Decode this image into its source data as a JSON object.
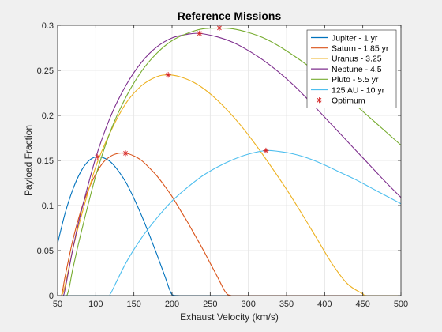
{
  "chart_data": {
    "type": "line",
    "title": "Reference Missions",
    "xlabel": "Exhaust Velocity (km/s)",
    "ylabel": "Payload Fraction",
    "xlim": [
      50,
      500
    ],
    "ylim": [
      0,
      0.3
    ],
    "xticks": [
      "50",
      "100",
      "150",
      "200",
      "250",
      "300",
      "350",
      "400",
      "450",
      "500"
    ],
    "yticks": [
      "0",
      "0.05",
      "0.1",
      "0.15",
      "0.2",
      "0.25",
      "0.3"
    ],
    "grid": true,
    "legend": "top-right",
    "series": [
      {
        "name": "Jupiter - 1 yr",
        "color": "#0072BD",
        "x": [
          50,
          60,
          70,
          80,
          90,
          100,
          110,
          120,
          130,
          140,
          150,
          160,
          170,
          180,
          190,
          200,
          210,
          250,
          300,
          350,
          400,
          450,
          500
        ],
        "y": [
          0.058,
          0.092,
          0.118,
          0.137,
          0.149,
          0.154,
          0.153,
          0.148,
          0.138,
          0.125,
          0.108,
          0.089,
          0.068,
          0.046,
          0.023,
          0.001,
          0,
          0,
          0,
          0,
          0,
          0,
          0
        ]
      },
      {
        "name": "Saturn - 1.85 yr",
        "color": "#D95319",
        "x": [
          50,
          55,
          60,
          70,
          80,
          90,
          100,
          110,
          120,
          130,
          140,
          150,
          160,
          170,
          180,
          190,
          200,
          210,
          220,
          230,
          240,
          250,
          260,
          270,
          278,
          300,
          350,
          400,
          450,
          500
        ],
        "y": [
          0,
          0,
          0.022,
          0.062,
          0.093,
          0.117,
          0.135,
          0.148,
          0.155,
          0.158,
          0.158,
          0.155,
          0.15,
          0.142,
          0.133,
          0.122,
          0.11,
          0.096,
          0.082,
          0.067,
          0.052,
          0.036,
          0.02,
          0.004,
          0,
          0,
          0,
          0,
          0,
          0
        ]
      },
      {
        "name": "Uranus - 3.25",
        "color": "#EDB120",
        "x": [
          50,
          55,
          60,
          70,
          80,
          100,
          120,
          140,
          160,
          180,
          195,
          210,
          230,
          250,
          270,
          290,
          310,
          330,
          350,
          370,
          390,
          410,
          430,
          450,
          455,
          500
        ],
        "y": [
          0,
          0,
          0.012,
          0.052,
          0.085,
          0.143,
          0.183,
          0.214,
          0.233,
          0.243,
          0.245,
          0.243,
          0.236,
          0.224,
          0.208,
          0.189,
          0.167,
          0.143,
          0.118,
          0.091,
          0.063,
          0.035,
          0.013,
          0.002,
          0,
          0
        ]
      },
      {
        "name": "Neptune - 4.5",
        "color": "#7E2F8E",
        "x": [
          50,
          57,
          60,
          70,
          80,
          100,
          120,
          140,
          160,
          180,
          200,
          220,
          236,
          260,
          280,
          300,
          320,
          340,
          360,
          380,
          400,
          420,
          440,
          460,
          480,
          500
        ],
        "y": [
          0,
          0,
          0.008,
          0.052,
          0.09,
          0.153,
          0.2,
          0.234,
          0.259,
          0.276,
          0.286,
          0.29,
          0.291,
          0.287,
          0.281,
          0.272,
          0.261,
          0.248,
          0.233,
          0.216,
          0.198,
          0.18,
          0.162,
          0.144,
          0.126,
          0.109
        ]
      },
      {
        "name": "Pluto - 5.5 yr",
        "color": "#77AC30",
        "x": [
          50,
          62,
          70,
          80,
          100,
          120,
          140,
          160,
          180,
          200,
          220,
          240,
          262,
          280,
          300,
          320,
          340,
          360,
          380,
          400,
          420,
          440,
          460,
          480,
          500
        ],
        "y": [
          0,
          0,
          0.03,
          0.067,
          0.133,
          0.184,
          0.221,
          0.249,
          0.269,
          0.283,
          0.291,
          0.296,
          0.297,
          0.296,
          0.292,
          0.286,
          0.277,
          0.266,
          0.254,
          0.241,
          0.227,
          0.212,
          0.197,
          0.182,
          0.167
        ]
      },
      {
        "name": "125 AU - 10 yr",
        "color": "#4DBEEE",
        "x": [
          50,
          100,
          118,
          120,
          140,
          160,
          180,
          200,
          220,
          240,
          260,
          280,
          300,
          323,
          340,
          360,
          380,
          400,
          420,
          440,
          460,
          480,
          500
        ],
        "y": [
          0,
          0,
          0,
          0.003,
          0.037,
          0.064,
          0.086,
          0.105,
          0.12,
          0.133,
          0.143,
          0.151,
          0.157,
          0.161,
          0.16,
          0.157,
          0.152,
          0.145,
          0.137,
          0.129,
          0.12,
          0.111,
          0.102
        ]
      }
    ],
    "optimum": {
      "name": "Optimum",
      "color": "#D62728",
      "marker": "*",
      "points": [
        {
          "x": 102,
          "y": 0.154
        },
        {
          "x": 139,
          "y": 0.158
        },
        {
          "x": 195,
          "y": 0.245
        },
        {
          "x": 236,
          "y": 0.291
        },
        {
          "x": 262,
          "y": 0.297
        },
        {
          "x": 323,
          "y": 0.161
        }
      ]
    }
  }
}
